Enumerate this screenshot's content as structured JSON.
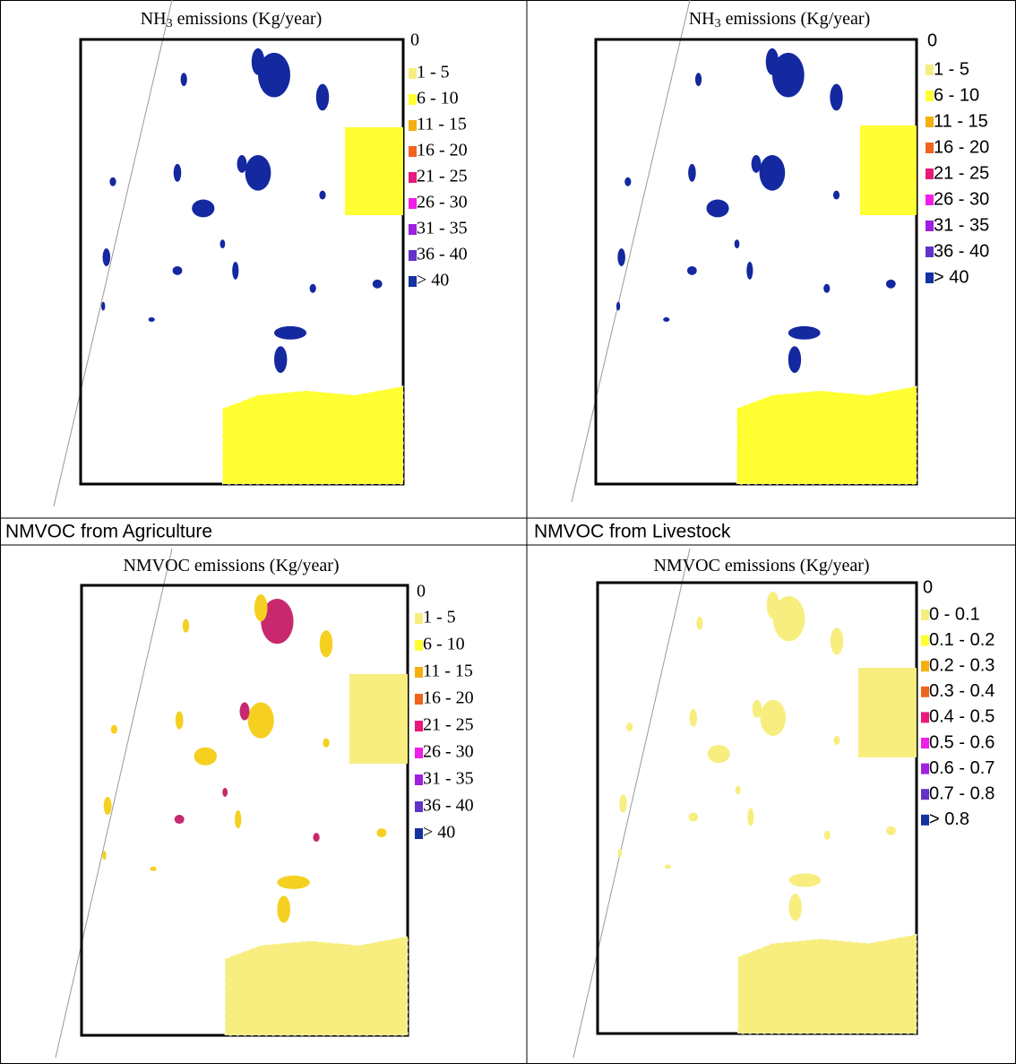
{
  "panels": [
    {
      "title": {
        "main": "NH",
        "sub": "3",
        "rest": " emissions (Kg/year)"
      },
      "legend": [
        {
          "label": "0",
          "color": "#ffffff"
        },
        {
          "label": "1 - 5",
          "color": "#f7ee7f"
        },
        {
          "label": "6 - 10",
          "color": "#ffff33"
        },
        {
          "label": "11 - 15",
          "color": "#f5b00f"
        },
        {
          "label": "16 - 20",
          "color": "#f0641e"
        },
        {
          "label": "21 - 25",
          "color": "#e8197a"
        },
        {
          "label": "26 - 30",
          "color": "#f01ee6"
        },
        {
          "label": "31 - 35",
          "color": "#a020e0"
        },
        {
          "label": "36 - 40",
          "color": "#6432c8"
        },
        {
          "label": "> 40",
          "color": "#1432a0"
        }
      ]
    },
    {
      "title": {
        "main": "NH",
        "sub": "3",
        "rest": " emissions (Kg/year)"
      },
      "legend": [
        {
          "label": "0",
          "color": "#ffffff"
        },
        {
          "label": "1 - 5",
          "color": "#f7ee7f"
        },
        {
          "label": "6 - 10",
          "color": "#ffff33"
        },
        {
          "label": "11 - 15",
          "color": "#f5b00f"
        },
        {
          "label": "16 - 20",
          "color": "#f0641e"
        },
        {
          "label": "21 - 25",
          "color": "#e8197a"
        },
        {
          "label": "26 - 30",
          "color": "#f01ee6"
        },
        {
          "label": "31 - 35",
          "color": "#a020e0"
        },
        {
          "label": "36 - 40",
          "color": "#6432c8"
        },
        {
          "label": "> 40",
          "color": "#1432a0"
        }
      ]
    },
    {
      "title": {
        "main": "NMVOC emissions (Kg/year)"
      },
      "legend": [
        {
          "label": "0",
          "color": "#ffffff"
        },
        {
          "label": "1 - 5",
          "color": "#f7ee7f"
        },
        {
          "label": "6 - 10",
          "color": "#ffff33"
        },
        {
          "label": "11 - 15",
          "color": "#f5b00f"
        },
        {
          "label": "16 - 20",
          "color": "#f0641e"
        },
        {
          "label": "21 - 25",
          "color": "#e8197a"
        },
        {
          "label": "26 - 30",
          "color": "#f01ee6"
        },
        {
          "label": "31 - 35",
          "color": "#a020e0"
        },
        {
          "label": "36 - 40",
          "color": "#6432c8"
        },
        {
          "label": "> 40",
          "color": "#1432a0"
        }
      ]
    },
    {
      "title": {
        "main": "NMVOC emissions (Kg/year)"
      },
      "legend": [
        {
          "label": "0",
          "color": "#ffffff"
        },
        {
          "label": "0 - 0.1",
          "color": "#f7ee7f"
        },
        {
          "label": "0.1 - 0.2",
          "color": "#ffff33"
        },
        {
          "label": "0.2 - 0.3",
          "color": "#f5b00f"
        },
        {
          "label": "0.3 - 0.4",
          "color": "#f0641e"
        },
        {
          "label": "0.4 - 0.5",
          "color": "#e8197a"
        },
        {
          "label": "0.5 - 0.6",
          "color": "#f01ee6"
        },
        {
          "label": "0.6 - 0.7",
          "color": "#a020e0"
        },
        {
          "label": "0.7 - 0.8",
          "color": "#6432c8"
        },
        {
          "label": "> 0.8",
          "color": "#1432a0"
        }
      ]
    }
  ],
  "row_labels": [
    "NMVOC from Agriculture",
    "NMVOC from Livestock"
  ]
}
